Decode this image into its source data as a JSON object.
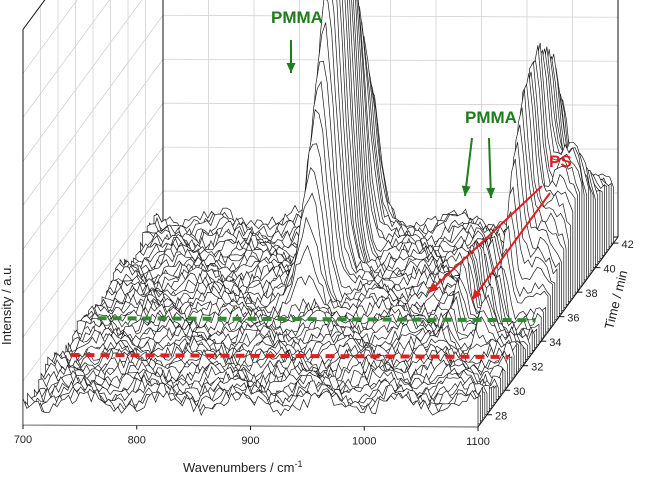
{
  "chart_data": {
    "type": "waterfall-3d",
    "xlabel": "Wavenumbers / cm",
    "xlabel_superscript": "-1",
    "ylabel": "Time / min",
    "zlabel": "Intensity / a.u.",
    "xlim": [
      700,
      1100
    ],
    "ylim": [
      27,
      42.5
    ],
    "x_ticks": [
      "700",
      "800",
      "900",
      "1000",
      "1100"
    ],
    "y_ticks": [
      "28",
      "30",
      "32",
      "34",
      "36",
      "38",
      "40",
      "42"
    ],
    "time_start": 27.0,
    "time_end": 42.0,
    "time_step": 0.25,
    "peaks": [
      {
        "label": "PMMA",
        "center": 885,
        "width": 9,
        "height": 1.0,
        "t0": 34.5,
        "rise": 0.9,
        "tpeak": 38.6,
        "tsigma": 2.4
      },
      {
        "label": "PMMA",
        "center": 1062,
        "width": 6,
        "height": 0.46,
        "t0": 34.5,
        "rise": 0.9,
        "tpeak": 38.6,
        "tsigma": 2.4
      },
      {
        "label": "PMMA",
        "center": 1085,
        "width": 16,
        "height": 0.3,
        "t0": 34.5,
        "rise": 0.9,
        "tpeak": 38.6,
        "tsigma": 2.4
      },
      {
        "label": "PS",
        "center": 1031,
        "width": 4,
        "height": 0.16,
        "t0": 31.2,
        "rise": 0.5,
        "tpeak": 35.2,
        "tsigma": 2.6
      },
      {
        "label": "PS",
        "center": 1062,
        "width": 4,
        "height": 0.17,
        "t0": 31.2,
        "rise": 0.5,
        "tpeak": 35.2,
        "tsigma": 2.6
      }
    ],
    "markers": [
      {
        "label": "PMMA",
        "time": 34.0,
        "color": "#2e8b2e"
      },
      {
        "label": "PS",
        "time": 31.0,
        "color": "#e02020"
      }
    ],
    "annotations": [
      {
        "text": "PMMA",
        "color": "#1e7d1e"
      },
      {
        "text": "PMMA",
        "color": "#1e7d1e"
      },
      {
        "text": "PS",
        "color": "#e01e1e"
      }
    ]
  }
}
